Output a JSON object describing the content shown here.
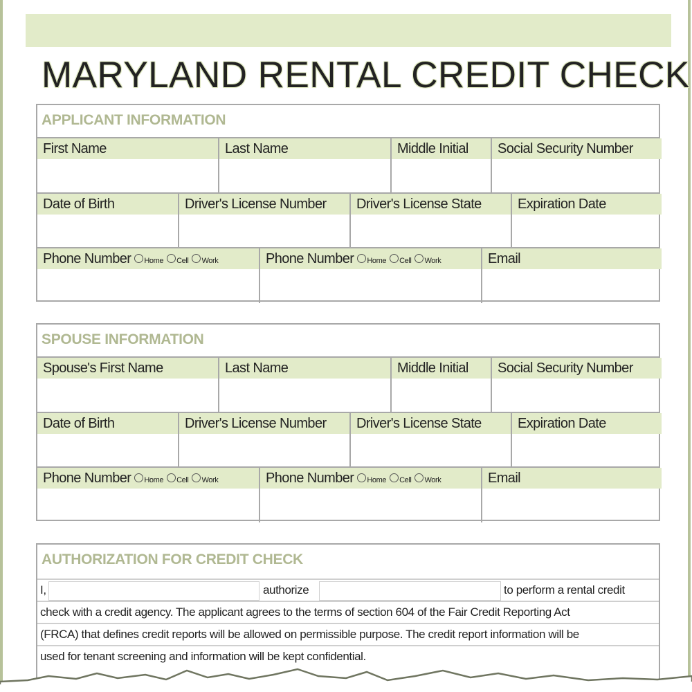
{
  "title": "MARYLAND RENTAL CREDIT CHECK",
  "colors": {
    "accent_band": "#e2ebc9",
    "section_heading": "#b0b892",
    "border": "#a8a8a8"
  },
  "phone_options": [
    "Home",
    "Cell",
    "Work"
  ],
  "applicant": {
    "heading": "APPLICANT INFORMATION",
    "rows": [
      [
        "First Name",
        "Last Name",
        "Middle Initial",
        "Social Security Number"
      ],
      [
        "Date of Birth",
        "Driver's License Number",
        "Driver's License State",
        "Expiration Date"
      ],
      [
        "Phone Number",
        "Phone Number",
        "Email"
      ]
    ]
  },
  "spouse": {
    "heading": "SPOUSE INFORMATION",
    "rows": [
      [
        "Spouse's First Name",
        "Last Name",
        "Middle Initial",
        "Social Security Number"
      ],
      [
        "Date of Birth",
        "Driver's License Number",
        "Driver's License State",
        "Expiration Date"
      ],
      [
        "Phone Number",
        "Phone Number",
        "Email"
      ]
    ]
  },
  "authorization": {
    "heading": "AUTHORIZATION FOR CREDIT CHECK",
    "prefix": "I,",
    "middle": "authorize",
    "suffix": "to perform a rental credit",
    "lines": [
      "check with a credit agency. The applicant agrees to the terms of section 604 of the Fair Credit Reporting Act",
      "(FRCA) that defines credit reports will be allowed on permissible purpose. The credit report information will be",
      "used for tenant screening and information will be kept confidential."
    ]
  }
}
